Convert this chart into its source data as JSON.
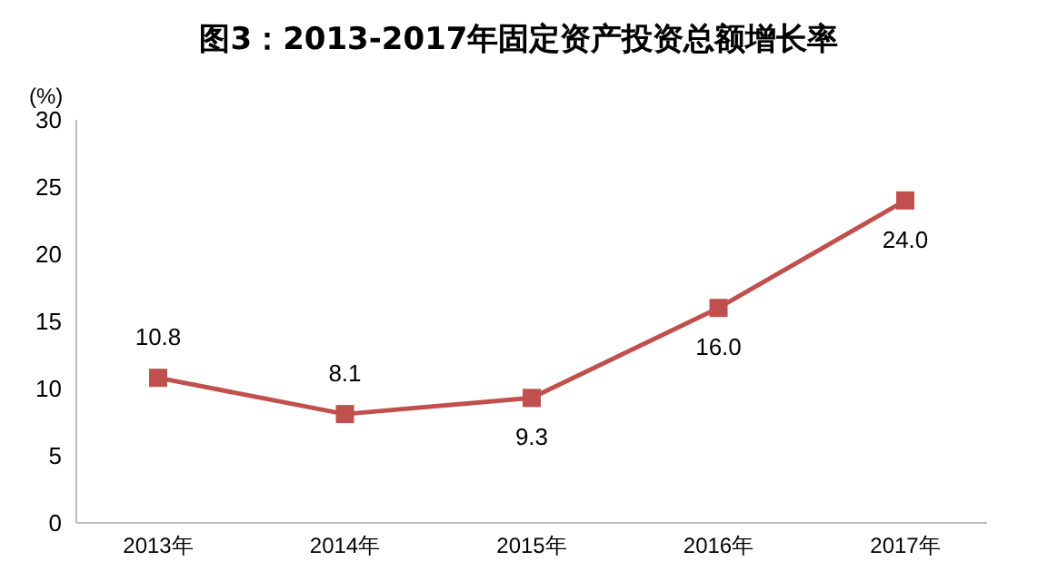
{
  "chart_data": {
    "type": "line",
    "title": "图3：2013-2017年固定资产投资总额增长率",
    "ylabel": "(%)",
    "categories": [
      "2013年",
      "2014年",
      "2015年",
      "2016年",
      "2017年"
    ],
    "series": [
      {
        "color": "#c0504d",
        "values": [
          10.8,
          8.1,
          9.3,
          16.0,
          24.0
        ]
      }
    ],
    "value_labels": [
      "10.8",
      "8.1",
      "9.3",
      "16.0",
      "24.0"
    ],
    "ylim": [
      0,
      30
    ],
    "yticks": [
      0,
      5,
      10,
      15,
      20,
      25,
      30
    ],
    "grid": false,
    "legend": false,
    "marker": "square",
    "line_style": "solid"
  }
}
